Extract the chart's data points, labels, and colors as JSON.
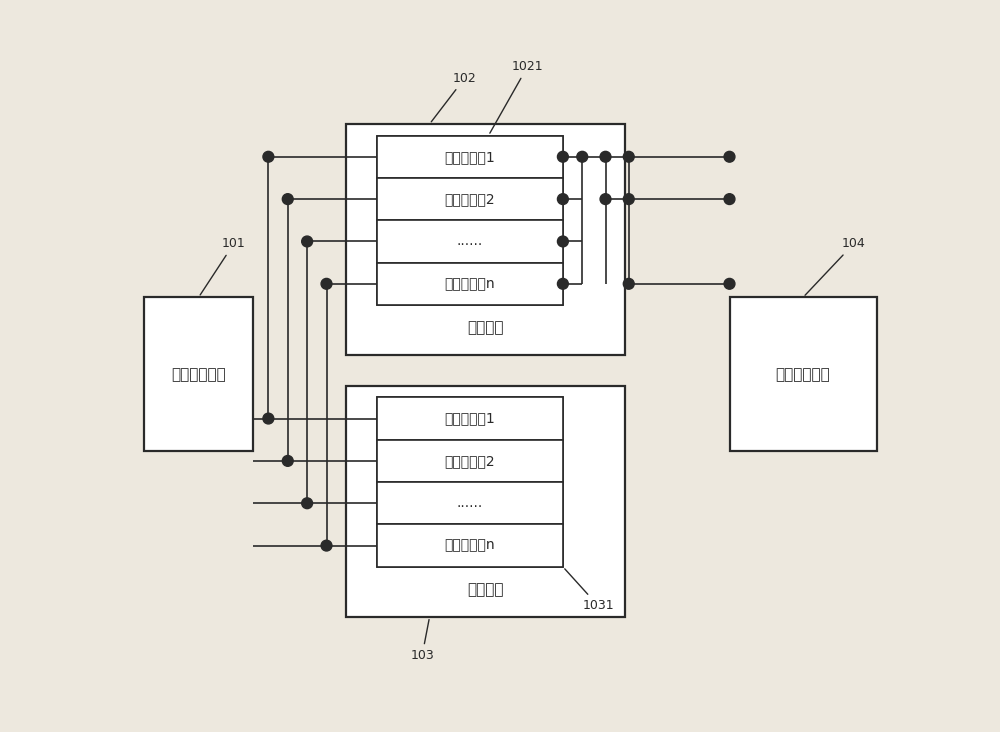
{
  "bg_color": "#ede8de",
  "line_color": "#2a2a2a",
  "box_fill": "#ffffff",
  "label_101": "101",
  "label_102": "102",
  "label_1021": "1021",
  "label_103": "103",
  "label_1031": "1031",
  "label_104": "104",
  "text_101": "数据分发模块",
  "text_102": "存储模块",
  "text_1021": "存储模块",
  "text_103": "合成模块",
  "text_1031": "合成模块",
  "text_104": "数据整合模块",
  "sub_stor_1": "存储子模块1",
  "sub_stor_2": "存储子模块2",
  "sub_stor_dots": "......",
  "sub_stor_n": "存储子模块n",
  "sub_syn_1": "合成子模块1",
  "sub_syn_2": "合成子模块2",
  "sub_syn_dots": "......",
  "sub_syn_n": "合成子模块n"
}
